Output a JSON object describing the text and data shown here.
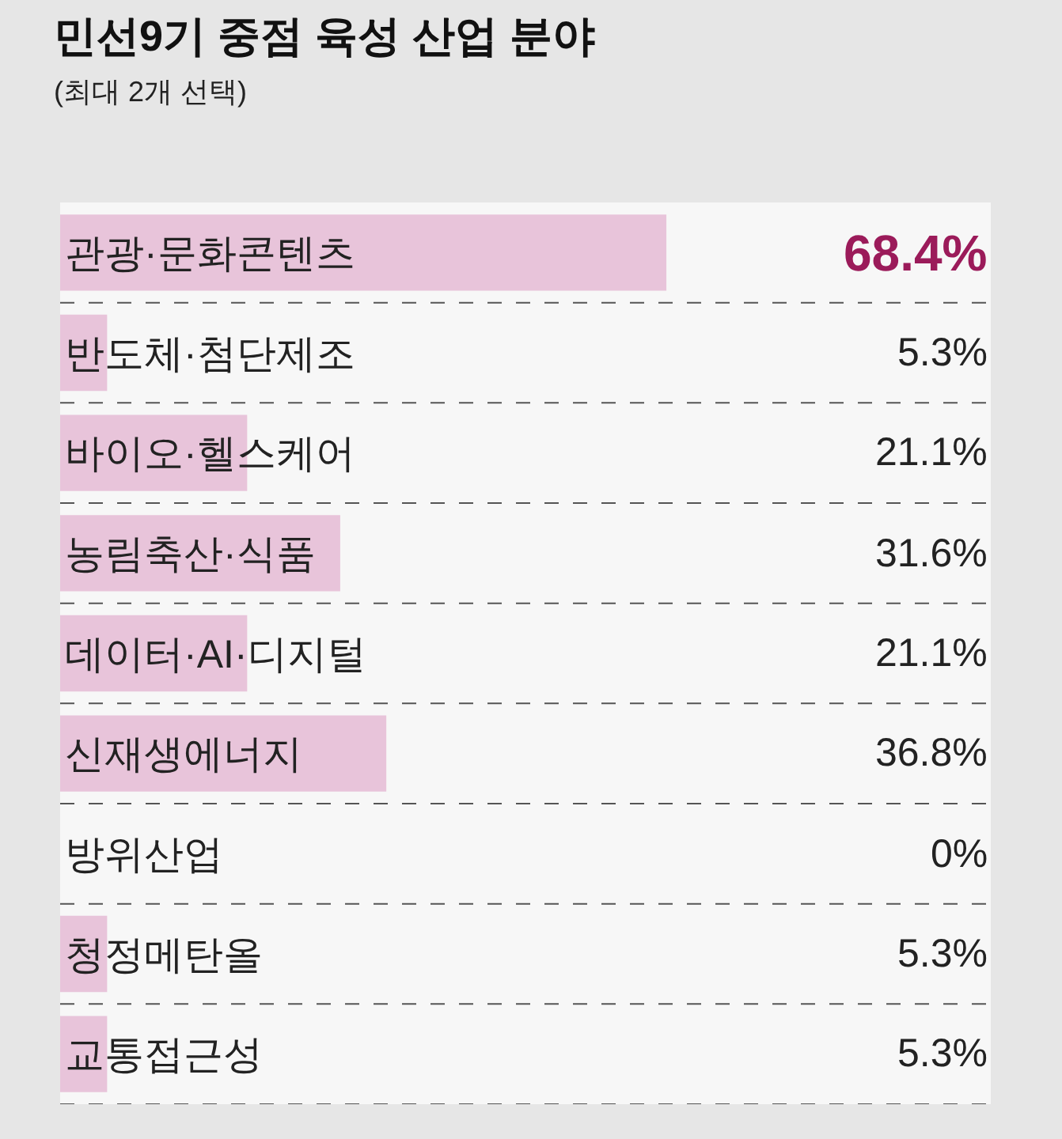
{
  "chart_data": {
    "type": "bar",
    "orientation": "horizontal",
    "title": "민선9기 중점 육성 산업 분야",
    "subtitle": "(최대 2개 선택)",
    "categories": [
      "관광·문화콘텐츠",
      "반도체·첨단제조",
      "바이오·헬스케어",
      "농림축산·식품",
      "데이터·AI·디지털",
      "신재생에너지",
      "방위산업",
      "청정메탄올",
      "교통접근성"
    ],
    "values": [
      68.4,
      5.3,
      21.1,
      31.6,
      21.1,
      36.8,
      0,
      5.3,
      5.3
    ],
    "value_labels": [
      "68.4%",
      "5.3%",
      "21.1%",
      "31.6%",
      "21.1%",
      "36.8%",
      "0%",
      "5.3%",
      "5.3%"
    ],
    "color": "#e8c4da",
    "xlim": [
      0,
      105
    ],
    "tick_labels": "y"
  }
}
